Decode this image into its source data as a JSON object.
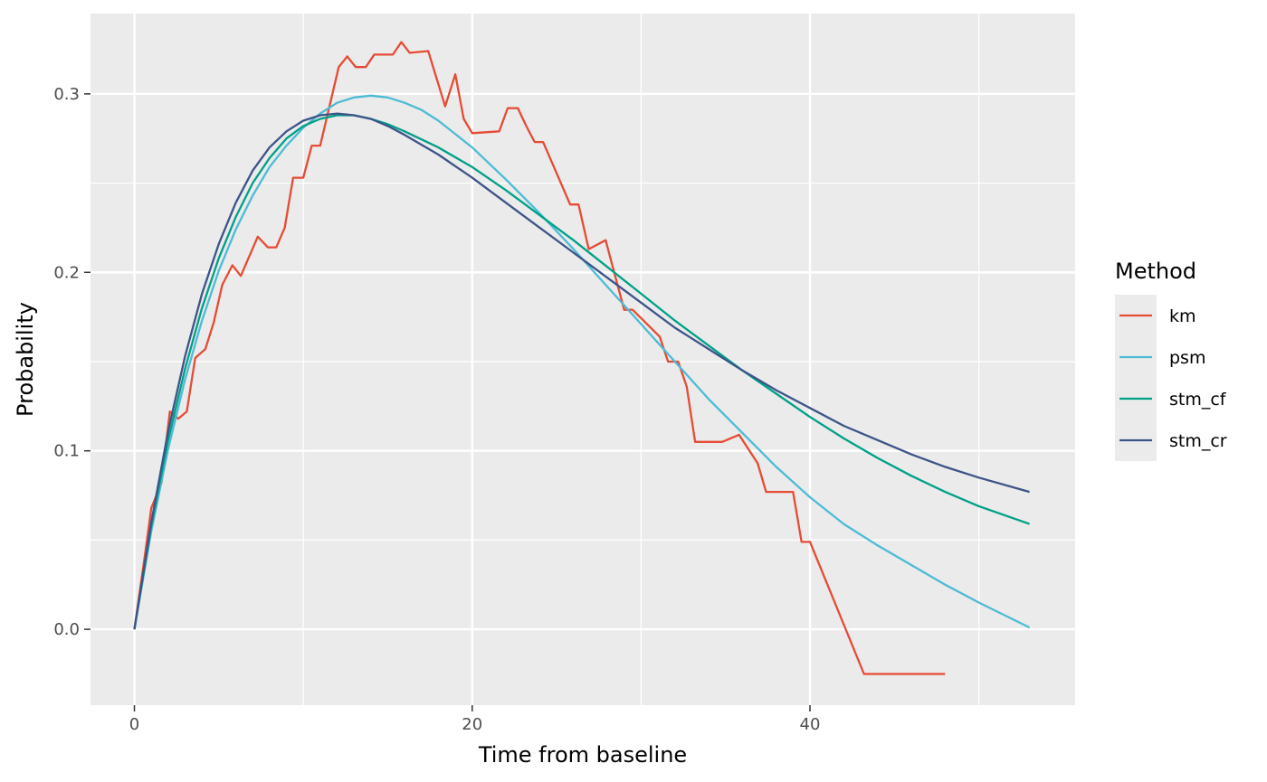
{
  "chart_data": {
    "type": "line",
    "title": "",
    "xlabel": "Time from baseline",
    "ylabel": "Probability",
    "xlim": [
      -2.6,
      55.7
    ],
    "ylim": [
      -0.0425,
      0.345
    ],
    "x_ticks": [
      0,
      20,
      40
    ],
    "x_tick_labels": [
      "0",
      "20",
      "40"
    ],
    "y_ticks": [
      0.0,
      0.1,
      0.2,
      0.3
    ],
    "y_tick_labels": [
      "0.0",
      "0.1",
      "0.2",
      "0.3"
    ],
    "grid": true,
    "legend": {
      "title": "Method",
      "position": "right"
    },
    "series": [
      {
        "name": "km",
        "color": "#E64B35",
        "points": [
          [
            0,
            0
          ],
          [
            0.6,
            0.04
          ],
          [
            1,
            0.068
          ],
          [
            1.6,
            0.082
          ],
          [
            2.1,
            0.122
          ],
          [
            2.6,
            0.118
          ],
          [
            3.1,
            0.122
          ],
          [
            3.6,
            0.152
          ],
          [
            4.2,
            0.157
          ],
          [
            4.7,
            0.172
          ],
          [
            5.2,
            0.193
          ],
          [
            5.8,
            0.204
          ],
          [
            6.3,
            0.198
          ],
          [
            7.3,
            0.22
          ],
          [
            7.9,
            0.214
          ],
          [
            8.4,
            0.214
          ],
          [
            8.9,
            0.225
          ],
          [
            9.4,
            0.253
          ],
          [
            10,
            0.253
          ],
          [
            10.5,
            0.271
          ],
          [
            11,
            0.271
          ],
          [
            12.1,
            0.315
          ],
          [
            12.6,
            0.321
          ],
          [
            13.1,
            0.315
          ],
          [
            13.7,
            0.315
          ],
          [
            14.2,
            0.322
          ],
          [
            15.3,
            0.322
          ],
          [
            15.8,
            0.329
          ],
          [
            16.3,
            0.323
          ],
          [
            17.4,
            0.324
          ],
          [
            18.4,
            0.293
          ],
          [
            19,
            0.311
          ],
          [
            19.5,
            0.286
          ],
          [
            20,
            0.278
          ],
          [
            21.6,
            0.279
          ],
          [
            22.1,
            0.292
          ],
          [
            22.7,
            0.292
          ],
          [
            23.2,
            0.282
          ],
          [
            23.7,
            0.273
          ],
          [
            24.2,
            0.273
          ],
          [
            25.8,
            0.238
          ],
          [
            26.3,
            0.238
          ],
          [
            26.9,
            0.213
          ],
          [
            27.9,
            0.218
          ],
          [
            29,
            0.179
          ],
          [
            29.5,
            0.179
          ],
          [
            31.1,
            0.164
          ],
          [
            31.6,
            0.15
          ],
          [
            32.2,
            0.15
          ],
          [
            32.7,
            0.136
          ],
          [
            33.2,
            0.105
          ],
          [
            34.8,
            0.105
          ],
          [
            35.8,
            0.109
          ],
          [
            36.9,
            0.093
          ],
          [
            37.4,
            0.077
          ],
          [
            39,
            0.077
          ],
          [
            39.5,
            0.049
          ],
          [
            40,
            0.049
          ],
          [
            43.2,
            -0.025
          ],
          [
            48,
            -0.025
          ]
        ]
      },
      {
        "name": "psm",
        "color": "#4DBBD5",
        "points": [
          [
            0,
            0
          ],
          [
            1,
            0.055
          ],
          [
            2,
            0.101
          ],
          [
            3,
            0.14
          ],
          [
            4,
            0.173
          ],
          [
            5,
            0.201
          ],
          [
            6,
            0.224
          ],
          [
            7,
            0.243
          ],
          [
            8,
            0.259
          ],
          [
            9,
            0.271
          ],
          [
            10,
            0.281
          ],
          [
            11,
            0.289
          ],
          [
            12,
            0.295
          ],
          [
            13,
            0.298
          ],
          [
            14,
            0.299
          ],
          [
            15,
            0.298
          ],
          [
            16,
            0.295
          ],
          [
            17,
            0.291
          ],
          [
            18,
            0.285
          ],
          [
            20,
            0.27
          ],
          [
            22,
            0.252
          ],
          [
            24,
            0.233
          ],
          [
            26,
            0.213
          ],
          [
            28,
            0.192
          ],
          [
            30,
            0.171
          ],
          [
            32,
            0.15
          ],
          [
            34,
            0.129
          ],
          [
            36,
            0.11
          ],
          [
            38,
            0.091
          ],
          [
            40,
            0.074
          ],
          [
            42,
            0.059
          ],
          [
            44,
            0.047
          ],
          [
            46,
            0.036
          ],
          [
            48,
            0.025
          ],
          [
            50,
            0.015
          ],
          [
            53,
            0.001
          ]
        ]
      },
      {
        "name": "stm_cf",
        "color": "#00A087",
        "points": [
          [
            0,
            0
          ],
          [
            1,
            0.058
          ],
          [
            2,
            0.106
          ],
          [
            3,
            0.146
          ],
          [
            4,
            0.18
          ],
          [
            5,
            0.208
          ],
          [
            6,
            0.231
          ],
          [
            7,
            0.25
          ],
          [
            8,
            0.264
          ],
          [
            9,
            0.275
          ],
          [
            10,
            0.282
          ],
          [
            11,
            0.286
          ],
          [
            12,
            0.288
          ],
          [
            13,
            0.288
          ],
          [
            14,
            0.286
          ],
          [
            15,
            0.283
          ],
          [
            16,
            0.279
          ],
          [
            18,
            0.27
          ],
          [
            20,
            0.259
          ],
          [
            22,
            0.246
          ],
          [
            24,
            0.232
          ],
          [
            26,
            0.218
          ],
          [
            28,
            0.203
          ],
          [
            30,
            0.188
          ],
          [
            32,
            0.173
          ],
          [
            34,
            0.159
          ],
          [
            36,
            0.145
          ],
          [
            38,
            0.132
          ],
          [
            40,
            0.119
          ],
          [
            42,
            0.107
          ],
          [
            44,
            0.096
          ],
          [
            46,
            0.086
          ],
          [
            48,
            0.077
          ],
          [
            50,
            0.069
          ],
          [
            53,
            0.059
          ]
        ]
      },
      {
        "name": "stm_cr",
        "color": "#3C5488",
        "points": [
          [
            0,
            0
          ],
          [
            1,
            0.06
          ],
          [
            2,
            0.111
          ],
          [
            3,
            0.153
          ],
          [
            4,
            0.188
          ],
          [
            5,
            0.216
          ],
          [
            6,
            0.239
          ],
          [
            7,
            0.257
          ],
          [
            8,
            0.27
          ],
          [
            9,
            0.279
          ],
          [
            10,
            0.285
          ],
          [
            11,
            0.288
          ],
          [
            12,
            0.289
          ],
          [
            13,
            0.288
          ],
          [
            14,
            0.286
          ],
          [
            15,
            0.282
          ],
          [
            16,
            0.277
          ],
          [
            18,
            0.266
          ],
          [
            20,
            0.253
          ],
          [
            22,
            0.239
          ],
          [
            24,
            0.225
          ],
          [
            26,
            0.211
          ],
          [
            28,
            0.197
          ],
          [
            30,
            0.183
          ],
          [
            32,
            0.169
          ],
          [
            34,
            0.157
          ],
          [
            36,
            0.145
          ],
          [
            38,
            0.134
          ],
          [
            40,
            0.124
          ],
          [
            42,
            0.114
          ],
          [
            44,
            0.106
          ],
          [
            46,
            0.098
          ],
          [
            48,
            0.091
          ],
          [
            50,
            0.085
          ],
          [
            53,
            0.077
          ]
        ]
      }
    ]
  }
}
